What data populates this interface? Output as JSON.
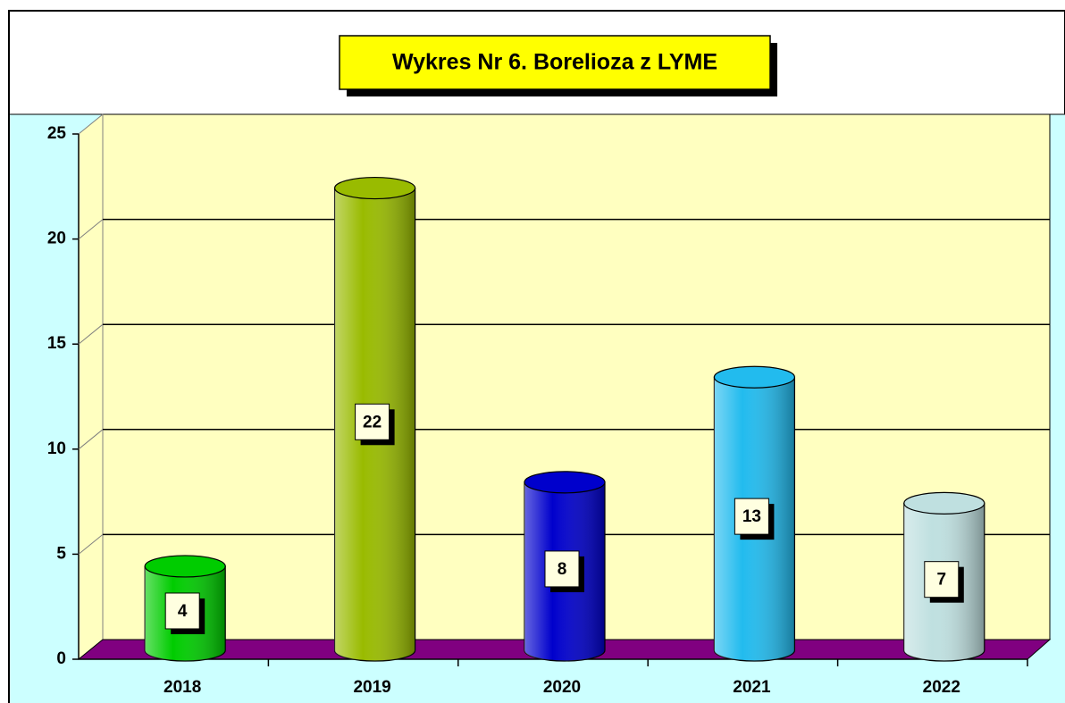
{
  "chart_data": {
    "type": "bar",
    "title": "Wykres Nr 6. Borelioza z LYME",
    "categories": [
      "2018",
      "2019",
      "2020",
      "2021",
      "2022"
    ],
    "values": [
      4,
      22,
      8,
      13,
      7
    ],
    "colors": [
      "#00cc00",
      "#99bb00",
      "#0000cc",
      "#22bbee",
      "#bfe0e0"
    ],
    "ylim": [
      0,
      25
    ],
    "yticks": [
      0,
      5,
      10,
      15,
      20,
      25
    ],
    "grid": true
  }
}
